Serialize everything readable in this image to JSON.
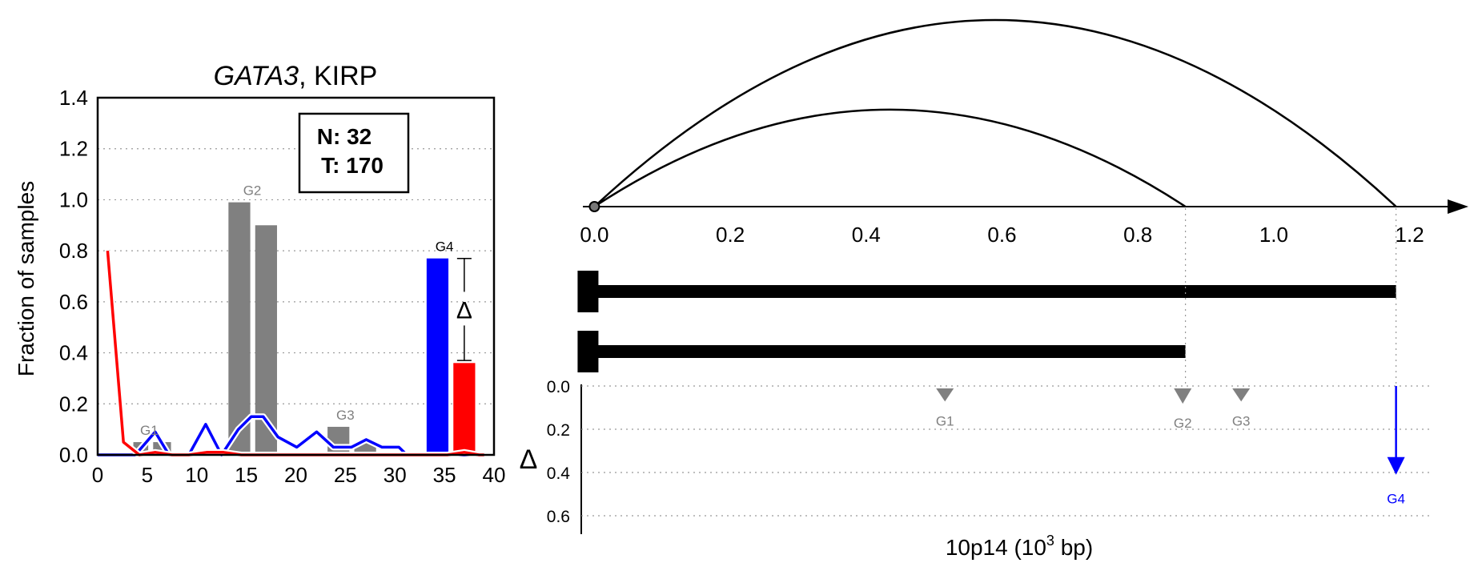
{
  "chart_data": [
    {
      "type": "bar",
      "title": {
        "gene": "GATA3",
        "rest": ", KIRP"
      },
      "ylabel": "Fraction of samples",
      "xlim": [
        0,
        40
      ],
      "ylim": [
        0,
        1.4
      ],
      "xticks": [
        0,
        5,
        10,
        15,
        20,
        25,
        30,
        35,
        40
      ],
      "yticks": [
        "0.0",
        "0.2",
        "0.4",
        "0.6",
        "0.8",
        "1.0",
        "1.2",
        "1.4"
      ],
      "grid": "horizontal dotted",
      "legend_box": {
        "line1": "N: 32",
        "line2": "T: 170"
      },
      "colors": {
        "gray": "#808080",
        "normal": "#0000ff",
        "tumor": "#ff0000",
        "axis": "#000000"
      },
      "gray_bars": [
        {
          "x": 3.6,
          "x2": 5.1,
          "y": 0.05
        },
        {
          "x": 5.6,
          "x2": 7.4,
          "y": 0.05
        },
        {
          "x": 13.2,
          "x2": 15.4,
          "y": 0.99
        },
        {
          "x": 15.9,
          "x2": 18.1,
          "y": 0.9
        },
        {
          "x": 23.2,
          "x2": 25.4,
          "y": 0.11
        },
        {
          "x": 25.9,
          "x2": 28.1,
          "y": 0.05
        }
      ],
      "group_labels": [
        {
          "label": "G1",
          "x": 5.2,
          "y": 0.06,
          "color": "#808080"
        },
        {
          "label": "G2",
          "x": 15.6,
          "y": 1.0,
          "color": "#808080"
        },
        {
          "label": "G3",
          "x": 25.0,
          "y": 0.12,
          "color": "#808080"
        },
        {
          "label": "G4",
          "x": 35.0,
          "y": 0.78,
          "color": "#000000"
        }
      ],
      "highlight_bars": [
        {
          "x": 33.2,
          "x2": 35.4,
          "y": 0.77,
          "series": "normal"
        },
        {
          "x": 35.9,
          "x2": 38.1,
          "y": 0.36,
          "series": "tumor"
        }
      ],
      "delta_marker": {
        "x": 37.0,
        "y_top": 0.77,
        "y_bottom": 0.37,
        "symbol": "Δ"
      },
      "series": [
        {
          "key": "normal",
          "points": [
            [
              0,
              0
            ],
            [
              1,
              0
            ],
            [
              2.3,
              0
            ],
            [
              3.8,
              0
            ],
            [
              5.8,
              0.09
            ],
            [
              7.2,
              0
            ],
            [
              9.2,
              0
            ],
            [
              10.9,
              0.12
            ],
            [
              12.5,
              0
            ],
            [
              14.2,
              0.1
            ],
            [
              15.5,
              0.15
            ],
            [
              16.7,
              0.15
            ],
            [
              18.2,
              0.07
            ],
            [
              20.1,
              0.03
            ],
            [
              22.1,
              0.09
            ],
            [
              23.8,
              0.03
            ],
            [
              25.6,
              0.03
            ],
            [
              27.1,
              0.06
            ],
            [
              28.7,
              0.03
            ],
            [
              30.4,
              0.03
            ],
            [
              31.2,
              0
            ],
            [
              32.2,
              0
            ],
            [
              39,
              0
            ]
          ]
        },
        {
          "key": "tumor",
          "points": [
            [
              1,
              0.8
            ],
            [
              2.6,
              0.05
            ],
            [
              4.2,
              0
            ],
            [
              5.8,
              0.01
            ],
            [
              7.5,
              0
            ],
            [
              9.2,
              0
            ],
            [
              11,
              0.01
            ],
            [
              12.7,
              0.01
            ],
            [
              14.5,
              0
            ],
            [
              16.3,
              0
            ],
            [
              18.2,
              0
            ],
            [
              20,
              0
            ],
            [
              22,
              0
            ],
            [
              24,
              0
            ],
            [
              26,
              0
            ],
            [
              28,
              0
            ],
            [
              30,
              0
            ],
            [
              32,
              0
            ],
            [
              33.5,
              0
            ],
            [
              35.3,
              0
            ],
            [
              37,
              0.01
            ],
            [
              38.5,
              0
            ],
            [
              39,
              0
            ]
          ]
        }
      ]
    },
    {
      "type": "diagram",
      "xlabel": {
        "main": "10p14 (10",
        "sup": "3",
        "tail": " bp)"
      },
      "xlim": [
        -0.05,
        1.27
      ],
      "xticks": [
        "0.0",
        "0.2",
        "0.4",
        "0.6",
        "0.8",
        "1.0",
        "1.2"
      ],
      "arcs": [
        {
          "from": 0.0,
          "to": 0.87,
          "height": 0.52
        },
        {
          "from": 0.0,
          "to": 1.18,
          "height": 1.0
        }
      ],
      "transcripts": [
        {
          "start": 0.0,
          "end": 1.18
        },
        {
          "start": 0.0,
          "end": 0.87
        }
      ],
      "delta_axis": {
        "label": "Δ",
        "ylim": [
          0,
          0.7
        ],
        "yticks": [
          "0.0",
          "0.2",
          "0.4",
          "0.6"
        ]
      },
      "delta_markers": [
        {
          "label": "G1",
          "x": 0.516,
          "delta": 0.02,
          "color": "#808080",
          "kind": "triangle"
        },
        {
          "label": "G2",
          "x": 0.866,
          "delta": 0.03,
          "color": "#808080",
          "kind": "triangle"
        },
        {
          "label": "G3",
          "x": 0.952,
          "delta": 0.02,
          "color": "#808080",
          "kind": "triangle"
        },
        {
          "label": "G4",
          "x": 1.18,
          "delta": 0.41,
          "color": "#0000ff",
          "kind": "arrow"
        }
      ]
    }
  ]
}
